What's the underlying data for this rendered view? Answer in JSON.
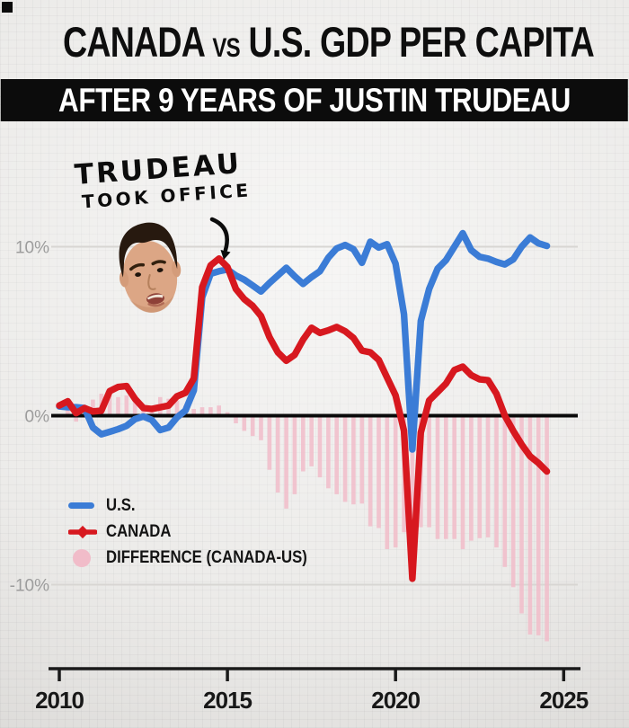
{
  "header": {
    "title_left": "CANADA",
    "title_vs": "VS",
    "title_right": "U.S. GDP PER CAPITA",
    "subtitle": "AFTER 9 YEARS OF JUSTIN TRUDEAU"
  },
  "annotation": {
    "line1": "TRUDEAU",
    "line2": "TOOK OFFICE"
  },
  "legend": {
    "items": [
      {
        "label": "U.S.",
        "swatch": "blue-line"
      },
      {
        "label": "CANADA",
        "swatch": "red-line-diamond"
      },
      {
        "label": "DIFFERENCE (CANADA-US)",
        "swatch": "pink-circle"
      }
    ]
  },
  "colors": {
    "us": "#3b7cd6",
    "canada": "#d7181f",
    "difference": "#f1bcc9",
    "zero_line": "#0a0a0a",
    "grid": "#d8d6d3",
    "axis": "#1a1a1a",
    "y_tick_label": "#9c9c9c",
    "x_tick_label": "#181818"
  },
  "chart_data": {
    "type": "combo",
    "title": "CANADA vs U.S. GDP PER CAPITA after 9 years of Justin Trudeau",
    "y_unit": "%",
    "ylim": [
      -15,
      11.5
    ],
    "xlim": [
      2010,
      2025
    ],
    "grid": true,
    "legend_position": "middle-left",
    "x": [
      2010,
      2010.25,
      2010.5,
      2010.75,
      2011,
      2011.25,
      2011.5,
      2011.75,
      2012,
      2012.25,
      2012.5,
      2012.75,
      2013,
      2013.25,
      2013.5,
      2013.75,
      2014,
      2014.25,
      2014.5,
      2014.75,
      2015,
      2015.25,
      2015.5,
      2015.75,
      2016,
      2016.25,
      2016.5,
      2016.75,
      2017,
      2017.25,
      2017.5,
      2017.75,
      2018,
      2018.25,
      2018.5,
      2018.75,
      2019,
      2019.25,
      2019.5,
      2019.75,
      2020,
      2020.25,
      2020.5,
      2020.75,
      2021,
      2021.25,
      2021.5,
      2021.75,
      2022,
      2022.25,
      2022.5,
      2022.75,
      2023,
      2023.25,
      2023.5,
      2023.75,
      2024,
      2024.25,
      2024.5
    ],
    "series": [
      {
        "name": "U.S.",
        "type": "line",
        "color": "#3b7cd6",
        "values": [
          0.55,
          0.5,
          0.5,
          0.45,
          -0.7,
          -1.1,
          -0.95,
          -0.8,
          -0.6,
          -0.2,
          -0.05,
          -0.25,
          -0.85,
          -0.7,
          -0.1,
          0.3,
          1.5,
          7.0,
          8.4,
          8.55,
          8.65,
          8.3,
          8.05,
          7.7,
          7.35,
          7.85,
          8.3,
          8.75,
          8.25,
          7.8,
          8.2,
          8.55,
          9.35,
          9.9,
          10.1,
          9.85,
          9.05,
          10.3,
          9.95,
          10.15,
          9.0,
          6.0,
          -2.0,
          5.6,
          7.5,
          8.7,
          9.2,
          10.0,
          10.8,
          9.8,
          9.4,
          9.3,
          9.1,
          8.95,
          9.25,
          10.0,
          10.55,
          10.2,
          10.05
        ]
      },
      {
        "name": "CANADA",
        "type": "line",
        "color": "#d7181f",
        "values": [
          0.6,
          0.85,
          0.15,
          0.45,
          0.25,
          0.3,
          1.45,
          1.7,
          1.75,
          1.0,
          0.45,
          0.4,
          0.5,
          0.6,
          1.15,
          1.35,
          2.2,
          7.6,
          8.9,
          9.3,
          8.8,
          7.5,
          6.9,
          6.5,
          5.9,
          4.65,
          3.75,
          3.25,
          3.6,
          4.5,
          5.2,
          4.9,
          5.05,
          5.25,
          5.0,
          4.6,
          3.85,
          3.75,
          3.3,
          2.25,
          1.2,
          -0.9,
          -9.65,
          -1.0,
          0.9,
          1.4,
          1.9,
          2.7,
          2.9,
          2.4,
          2.15,
          2.1,
          1.3,
          0.0,
          -0.9,
          -1.7,
          -2.4,
          -2.8,
          -3.3
        ]
      },
      {
        "name": "DIFFERENCE (CANADA-US)",
        "type": "bar",
        "color": "#f1bcc9",
        "values": [
          0.05,
          0.35,
          -0.35,
          0.05,
          0.95,
          1.3,
          1.2,
          1.1,
          1.2,
          0.9,
          0.5,
          0.55,
          1.1,
          1.0,
          0.9,
          0.6,
          0.4,
          0.5,
          0.5,
          0.6,
          0.2,
          -0.45,
          -0.9,
          -1.2,
          -1.45,
          -3.2,
          -4.55,
          -5.5,
          -4.65,
          -3.3,
          -3.0,
          -3.65,
          -4.3,
          -4.65,
          -5.1,
          -5.25,
          -5.2,
          -6.55,
          -6.65,
          -7.9,
          -7.8,
          -6.9,
          -7.65,
          -6.6,
          -6.6,
          -7.3,
          -7.3,
          -7.3,
          -7.9,
          -7.4,
          -7.25,
          -7.2,
          -7.8,
          -8.95,
          -10.15,
          -11.7,
          -12.95,
          -13.0,
          -13.35
        ]
      }
    ],
    "y_ticks": [
      {
        "label": "10%",
        "value": 10
      },
      {
        "label": "0%",
        "value": 0
      },
      {
        "label": "-10%",
        "value": -10
      }
    ],
    "x_ticks": [
      {
        "label": "2010",
        "value": 2010
      },
      {
        "label": "2015",
        "value": 2015
      },
      {
        "label": "2020",
        "value": 2020
      },
      {
        "label": "2025",
        "value": 2025
      }
    ]
  }
}
